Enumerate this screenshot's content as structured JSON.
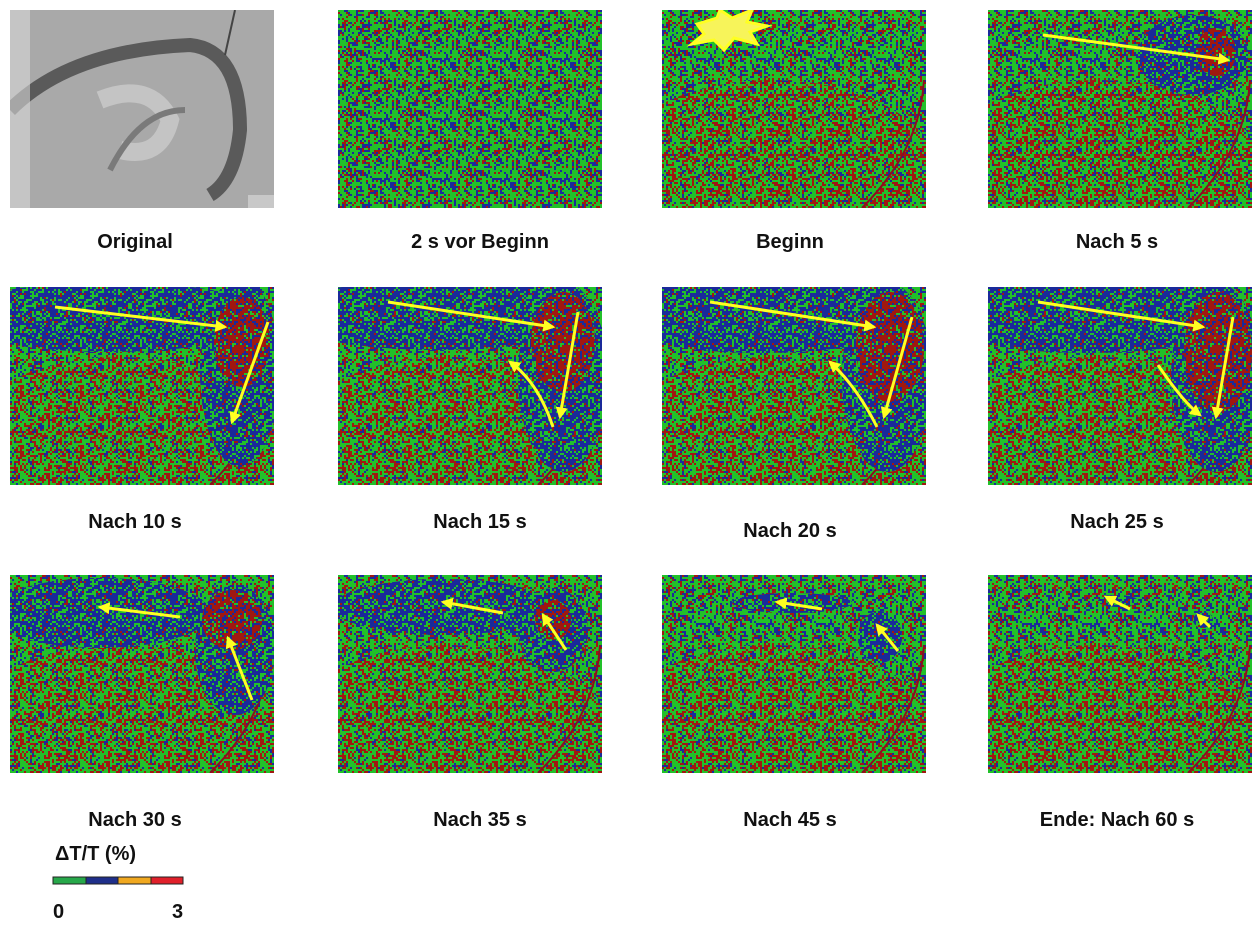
{
  "panels": [
    {
      "label": "Original"
    },
    {
      "label": "2 s vor Beginn"
    },
    {
      "label": "Beginn"
    },
    {
      "label": "Nach 5 s"
    },
    {
      "label": "Nach 10 s"
    },
    {
      "label": "Nach 15 s"
    },
    {
      "label": "Nach 20 s"
    },
    {
      "label": "Nach 25 s"
    },
    {
      "label": "Nach 30 s"
    },
    {
      "label": "Nach 35 s"
    },
    {
      "label": "Nach 45 s"
    },
    {
      "label": "Ende: Nach 60 s"
    }
  ],
  "colorbar": {
    "title": "ΔT/T (%)",
    "min_label": "0",
    "max_label": "3"
  }
}
